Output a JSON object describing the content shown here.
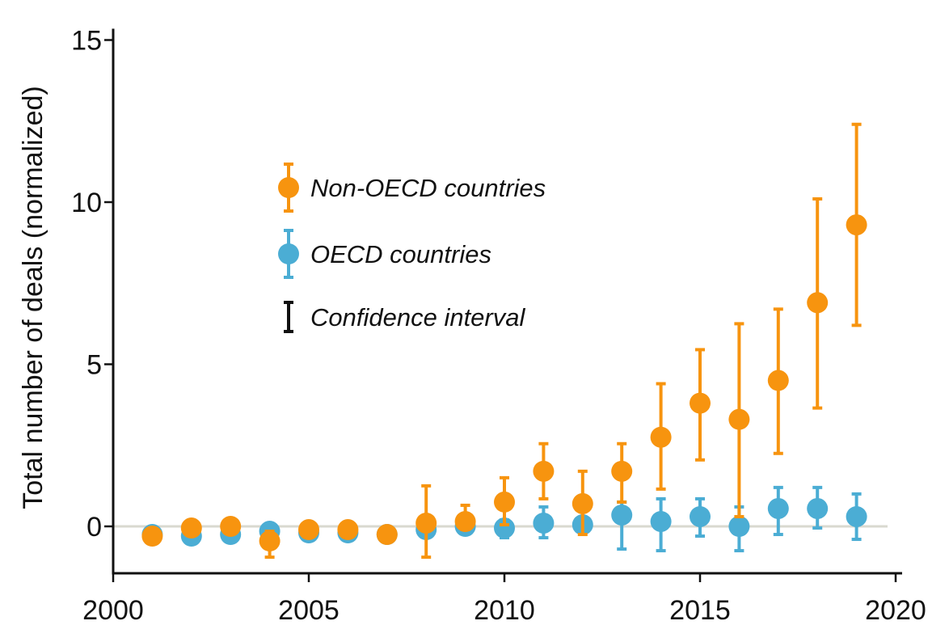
{
  "chart_data": {
    "type": "scatter",
    "title": "",
    "xlabel": "",
    "ylabel": "Total number of deals (normalized)",
    "xlim": [
      2000,
      2020
    ],
    "ylim": [
      -1.5,
      15.5
    ],
    "xticks": [
      2000,
      2005,
      2010,
      2015,
      2020
    ],
    "yticks": [
      0,
      5,
      10,
      15
    ],
    "xtick_labels": [
      "2000",
      "2005",
      "2010",
      "2015",
      "2020"
    ],
    "ytick_labels": [
      "0",
      "5",
      "10",
      "15"
    ],
    "zero_reference_line": true,
    "legend_position": "upper-left",
    "series": [
      {
        "name": "OECD countries",
        "color": "#4badd4",
        "points": [
          {
            "x": 2001,
            "y": -0.25,
            "lo": -0.35,
            "hi": -0.15
          },
          {
            "x": 2002,
            "y": -0.3,
            "lo": -0.4,
            "hi": -0.2
          },
          {
            "x": 2003,
            "y": -0.25,
            "lo": -0.35,
            "hi": -0.15
          },
          {
            "x": 2004,
            "y": -0.15,
            "lo": -0.25,
            "hi": -0.05
          },
          {
            "x": 2005,
            "y": -0.2,
            "lo": -0.3,
            "hi": -0.1
          },
          {
            "x": 2006,
            "y": -0.2,
            "lo": -0.3,
            "hi": -0.1
          },
          {
            "x": 2007,
            "y": -0.25,
            "lo": -0.35,
            "hi": -0.15
          },
          {
            "x": 2008,
            "y": -0.1,
            "lo": -0.3,
            "hi": 0.1
          },
          {
            "x": 2009,
            "y": 0.0,
            "lo": -0.15,
            "hi": 0.15
          },
          {
            "x": 2010,
            "y": -0.05,
            "lo": -0.35,
            "hi": 0.2
          },
          {
            "x": 2011,
            "y": 0.1,
            "lo": -0.35,
            "hi": 0.6
          },
          {
            "x": 2012,
            "y": 0.05,
            "lo": -0.15,
            "hi": 0.2
          },
          {
            "x": 2013,
            "y": 0.35,
            "lo": -0.7,
            "hi": 0.75
          },
          {
            "x": 2014,
            "y": 0.15,
            "lo": -0.75,
            "hi": 0.85
          },
          {
            "x": 2015,
            "y": 0.3,
            "lo": -0.3,
            "hi": 0.85
          },
          {
            "x": 2016,
            "y": 0.0,
            "lo": -0.75,
            "hi": 0.6
          },
          {
            "x": 2017,
            "y": 0.55,
            "lo": -0.25,
            "hi": 1.2
          },
          {
            "x": 2018,
            "y": 0.55,
            "lo": -0.05,
            "hi": 1.2
          },
          {
            "x": 2019,
            "y": 0.3,
            "lo": -0.4,
            "hi": 1.0
          }
        ]
      },
      {
        "name": "Non-OECD countries",
        "color": "#f7940f",
        "points": [
          {
            "x": 2001,
            "y": -0.3,
            "lo": -0.4,
            "hi": -0.2
          },
          {
            "x": 2002,
            "y": -0.05,
            "lo": -0.15,
            "hi": 0.05
          },
          {
            "x": 2003,
            "y": 0.0,
            "lo": -0.1,
            "hi": 0.1
          },
          {
            "x": 2004,
            "y": -0.45,
            "lo": -0.95,
            "hi": -0.15
          },
          {
            "x": 2005,
            "y": -0.1,
            "lo": -0.2,
            "hi": 0.0
          },
          {
            "x": 2006,
            "y": -0.1,
            "lo": -0.2,
            "hi": 0.0
          },
          {
            "x": 2007,
            "y": -0.25,
            "lo": -0.35,
            "hi": -0.15
          },
          {
            "x": 2008,
            "y": 0.1,
            "lo": -0.95,
            "hi": 1.25
          },
          {
            "x": 2009,
            "y": 0.15,
            "lo": -0.1,
            "hi": 0.65
          },
          {
            "x": 2010,
            "y": 0.75,
            "lo": 0.05,
            "hi": 1.5
          },
          {
            "x": 2011,
            "y": 1.7,
            "lo": 0.85,
            "hi": 2.55
          },
          {
            "x": 2012,
            "y": 0.7,
            "lo": -0.25,
            "hi": 1.7
          },
          {
            "x": 2013,
            "y": 1.7,
            "lo": 0.75,
            "hi": 2.55
          },
          {
            "x": 2014,
            "y": 2.75,
            "lo": 1.15,
            "hi": 4.4
          },
          {
            "x": 2015,
            "y": 3.8,
            "lo": 2.05,
            "hi": 5.45
          },
          {
            "x": 2016,
            "y": 3.3,
            "lo": 0.3,
            "hi": 6.25
          },
          {
            "x": 2017,
            "y": 4.5,
            "lo": 2.25,
            "hi": 6.7
          },
          {
            "x": 2018,
            "y": 6.9,
            "lo": 3.65,
            "hi": 10.1
          },
          {
            "x": 2019,
            "y": 9.3,
            "lo": 6.2,
            "hi": 12.4
          }
        ]
      }
    ],
    "legend": [
      {
        "label": "Non-OECD countries",
        "symbol": "point-with-errorbar",
        "color": "#f7940f"
      },
      {
        "label": "OECD countries",
        "symbol": "point-with-errorbar",
        "color": "#4badd4"
      },
      {
        "label": "Confidence interval",
        "symbol": "errorbar",
        "color": "#111111"
      }
    ]
  }
}
